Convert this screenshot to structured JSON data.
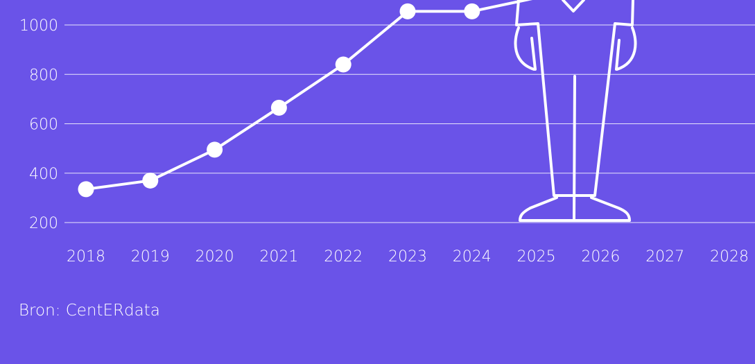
{
  "chart_data": {
    "type": "line",
    "x": [
      "2018",
      "2019",
      "2020",
      "2021",
      "2022",
      "2023",
      "2024",
      "2025"
    ],
    "values": [
      335,
      370,
      495,
      665,
      840,
      1055,
      1055,
      1110
    ],
    "categories": [
      "2018",
      "2019",
      "2020",
      "2021",
      "2022",
      "2023",
      "2024",
      "2025",
      "2026",
      "2027",
      "2028"
    ],
    "y_ticks": [
      "200",
      "400",
      "600",
      "800",
      "1000"
    ],
    "ylim": [
      130,
      1100
    ],
    "grid": true,
    "title": "",
    "xlabel": "",
    "ylabel": ""
  },
  "source": "Bron: CentERdata",
  "colors": {
    "background": "#6a53e8",
    "line": "#ffffff",
    "grid": "#ffffff"
  },
  "illustration": "person-figure-outline"
}
